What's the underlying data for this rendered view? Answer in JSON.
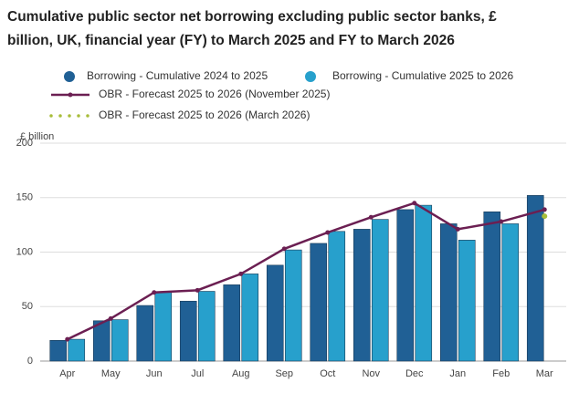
{
  "chart_data": {
    "type": "bar",
    "title": "Cumulative public sector net borrowing excluding public sector banks, £ billion, UK, financial year (FY) to March 2025 and FY to March 2026",
    "y_label": "£ billion",
    "categories": [
      "Apr",
      "May",
      "Jun",
      "Jul",
      "Aug",
      "Sep",
      "Oct",
      "Nov",
      "Dec",
      "Jan",
      "Feb",
      "Mar"
    ],
    "series": [
      {
        "name": "Borrowing - Cumulative 2024 to 2025",
        "type": "bar",
        "color": "#206095",
        "values": [
          19,
          37,
          51,
          55,
          70,
          88,
          108,
          121,
          139,
          126,
          137,
          152
        ]
      },
      {
        "name": "Borrowing - Cumulative 2025 to 2026",
        "type": "bar",
        "color": "#27a0cc",
        "values": [
          20,
          38,
          63,
          64,
          80,
          102,
          119,
          130,
          143,
          111,
          126,
          null
        ]
      },
      {
        "name": "OBR - Forecast 2025 to 2026 (November 2025)",
        "type": "line",
        "color": "#6b1f52",
        "values": [
          20,
          39,
          63,
          65,
          80,
          103,
          118,
          132,
          145,
          121,
          128,
          139
        ]
      },
      {
        "name": "OBR - Forecast 2025 to 2026 (March 2026)",
        "type": "dotted",
        "color": "#a8bd3a",
        "values": [
          null,
          null,
          null,
          null,
          null,
          null,
          null,
          null,
          null,
          null,
          null,
          133
        ]
      }
    ],
    "ylim": [
      0,
      200
    ],
    "yticks": [
      0,
      50,
      100,
      150,
      200
    ],
    "grid": true
  }
}
